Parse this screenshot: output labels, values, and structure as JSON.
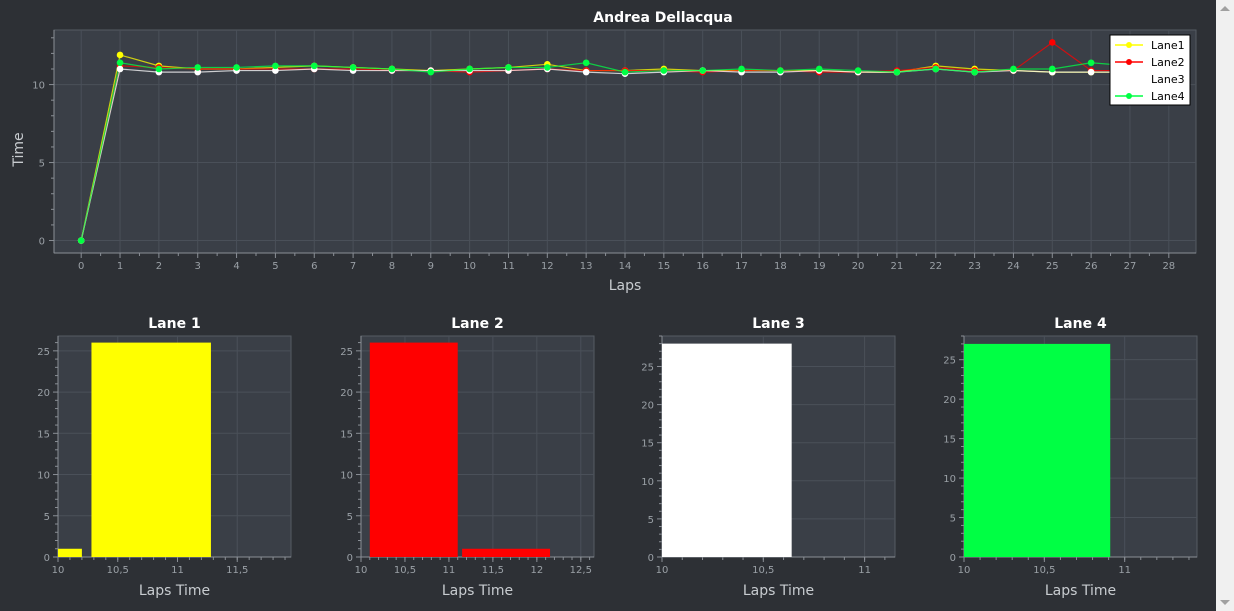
{
  "colors": {
    "background": "#2d3035",
    "plot_area": "#3a3f47",
    "grid": "#4a5059",
    "axis": "#8a8f96",
    "tick_text": "#9aa0a6",
    "title_text": "#ffffff",
    "lane1": "#ffff00",
    "lane2": "#ff0000",
    "lane3": "#ffffff",
    "lane4": "#00ff44"
  },
  "chart_data": [
    {
      "type": "line",
      "title": "Andrea Dellacqua",
      "xlabel": "Laps",
      "ylabel": "Time",
      "xlim": [
        -0.7,
        28.7
      ],
      "ylim": [
        -0.8,
        13.5
      ],
      "x_ticks": [
        0,
        1,
        2,
        3,
        4,
        5,
        6,
        7,
        8,
        9,
        10,
        11,
        12,
        13,
        14,
        15,
        16,
        17,
        18,
        19,
        20,
        21,
        22,
        23,
        24,
        25,
        26,
        27,
        28
      ],
      "y_ticks": [
        0,
        5,
        10
      ],
      "legend_position": "top-right",
      "series": [
        {
          "name": "Lane1",
          "color_key": "lane1",
          "x": [
            0,
            1,
            2,
            3,
            4,
            5,
            6,
            7,
            8,
            9,
            10,
            11,
            12,
            13,
            14,
            15,
            16,
            17,
            18,
            19,
            20,
            21,
            22,
            23,
            24,
            25,
            26,
            27
          ],
          "y": [
            0,
            11.9,
            11.2,
            11.0,
            11.0,
            11.1,
            11.2,
            11.1,
            11.0,
            10.9,
            11.0,
            11.1,
            11.3,
            10.9,
            10.9,
            11.0,
            10.9,
            10.9,
            10.9,
            10.9,
            10.8,
            10.8,
            11.2,
            11.0,
            10.9,
            10.8,
            10.8,
            10.8
          ]
        },
        {
          "name": "Lane2",
          "color_key": "lane2",
          "x": [
            0,
            1,
            2,
            3,
            4,
            5,
            6,
            7,
            8,
            9,
            10,
            11,
            12,
            13,
            14,
            15,
            16,
            17,
            18,
            19,
            20,
            21,
            22,
            23,
            24,
            25,
            26,
            27
          ],
          "y": [
            0,
            11.2,
            11.1,
            11.0,
            11.0,
            11.0,
            11.0,
            11.0,
            10.9,
            10.9,
            10.8,
            10.9,
            11.0,
            10.9,
            10.9,
            10.9,
            10.8,
            10.9,
            10.9,
            10.8,
            10.8,
            10.9,
            11.1,
            10.9,
            10.9,
            12.7,
            10.9,
            10.9
          ]
        },
        {
          "name": "Lane3",
          "color_key": "lane3",
          "x": [
            0,
            1,
            2,
            3,
            4,
            5,
            6,
            7,
            8,
            9,
            10,
            11,
            12,
            13,
            14,
            15,
            16,
            17,
            18,
            19,
            20,
            21,
            22,
            23,
            24,
            25,
            26,
            27
          ],
          "y": [
            0,
            11.0,
            10.8,
            10.8,
            10.9,
            10.9,
            11.0,
            10.9,
            10.9,
            10.9,
            10.9,
            10.9,
            11.0,
            10.8,
            10.7,
            10.8,
            10.9,
            10.8,
            10.8,
            10.9,
            10.8,
            10.8,
            11.0,
            10.8,
            10.9,
            10.8,
            10.8,
            10.8
          ]
        },
        {
          "name": "Lane4",
          "color_key": "lane4",
          "x": [
            0,
            1,
            2,
            3,
            4,
            5,
            6,
            7,
            8,
            9,
            10,
            11,
            12,
            13,
            14,
            15,
            16,
            17,
            18,
            19,
            20,
            21,
            22,
            23,
            24,
            25,
            26,
            27
          ],
          "y": [
            0,
            11.4,
            11.0,
            11.1,
            11.1,
            11.2,
            11.2,
            11.1,
            11.0,
            10.8,
            11.0,
            11.1,
            11.1,
            11.4,
            10.8,
            10.9,
            10.9,
            11.0,
            10.9,
            11.0,
            10.9,
            10.8,
            11.0,
            10.8,
            11.0,
            11.0,
            11.4,
            11.2
          ]
        }
      ]
    },
    {
      "type": "bar",
      "title": "Lane 1",
      "xlabel": "Laps Time",
      "ylabel": "",
      "color_key": "lane1",
      "xlim": [
        10,
        11.95
      ],
      "ylim": [
        0,
        26.8
      ],
      "x_ticks": [
        10,
        10.5,
        11,
        11.5
      ],
      "x_tick_labels": [
        "10",
        "10,5",
        "11",
        "11,5"
      ],
      "y_ticks": [
        0,
        5,
        10,
        15,
        20,
        25
      ],
      "bins": [
        {
          "x0": 10.0,
          "x1": 10.2,
          "count": 1
        },
        {
          "x0": 10.28,
          "x1": 11.28,
          "count": 26
        }
      ]
    },
    {
      "type": "bar",
      "title": "Lane 2",
      "xlabel": "Laps Time",
      "ylabel": "",
      "color_key": "lane2",
      "xlim": [
        10,
        12.65
      ],
      "ylim": [
        0,
        26.8
      ],
      "x_ticks": [
        10,
        10.5,
        11,
        11.5,
        12,
        12.5
      ],
      "x_tick_labels": [
        "10",
        "10,5",
        "11",
        "11,5",
        "12",
        "12,5"
      ],
      "y_ticks": [
        0,
        5,
        10,
        15,
        20,
        25
      ],
      "bins": [
        {
          "x0": 10.1,
          "x1": 11.1,
          "count": 26
        },
        {
          "x0": 11.15,
          "x1": 12.15,
          "count": 1
        }
      ]
    },
    {
      "type": "bar",
      "title": "Lane 3",
      "xlabel": "Laps Time",
      "ylabel": "",
      "color_key": "lane3",
      "xlim": [
        10,
        11.15
      ],
      "ylim": [
        0,
        29
      ],
      "x_ticks": [
        10,
        10.5,
        11
      ],
      "x_tick_labels": [
        "10",
        "10,5",
        "11"
      ],
      "y_ticks": [
        0,
        5,
        10,
        15,
        20,
        25
      ],
      "bins": [
        {
          "x0": 10.0,
          "x1": 10.64,
          "count": 28
        }
      ]
    },
    {
      "type": "bar",
      "title": "Lane 4",
      "xlabel": "Laps Time",
      "ylabel": "",
      "color_key": "lane4",
      "xlim": [
        10,
        11.45
      ],
      "ylim": [
        0,
        28
      ],
      "x_ticks": [
        10,
        10.5,
        11
      ],
      "x_tick_labels": [
        "10",
        "10,5",
        "11"
      ],
      "y_ticks": [
        0,
        5,
        10,
        15,
        20,
        25
      ],
      "bins": [
        {
          "x0": 10.0,
          "x1": 10.91,
          "count": 27
        }
      ]
    }
  ]
}
